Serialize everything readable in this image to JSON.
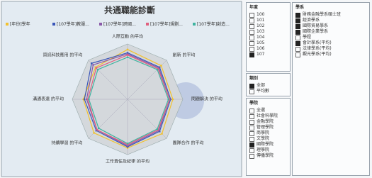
{
  "chart_data": {
    "type": "radar",
    "title": "共通職能診斷",
    "axes": [
      "人際互動 的平均",
      "創新 的平均",
      "問題解決 的平均",
      "團隊合作 的平均",
      "工作責任及紀律 的平均",
      "持續學習 的平均",
      "溝通表達 的平均",
      "資訊科技應用 的平均"
    ],
    "rlim": [
      0,
      5
    ],
    "series": [
      {
        "name": "[年份]學年",
        "color": "#f2c12e",
        "values": [
          4.5,
          4.3,
          4.1,
          4.4,
          4.4,
          4.3,
          4.0,
          4.1
        ]
      },
      {
        "name": "[107學年]教服...",
        "color": "#3a56b8",
        "values": [
          4.2,
          4.1,
          3.9,
          4.1,
          4.3,
          4.0,
          3.9,
          4.6
        ]
      },
      {
        "name": "[107學年]跨國...",
        "color": "#8a5aa8",
        "values": [
          4.1,
          4.0,
          3.8,
          4.0,
          4.2,
          3.9,
          3.7,
          4.4
        ]
      },
      {
        "name": "[107學年]規劃...",
        "color": "#e0607e",
        "values": [
          4.0,
          3.9,
          3.8,
          3.9,
          4.1,
          3.9,
          3.6,
          4.0
        ]
      },
      {
        "name": "[107學年]創造...",
        "color": "#3fb3a0",
        "values": [
          3.8,
          3.8,
          3.7,
          3.8,
          4.0,
          3.7,
          3.5,
          3.8
        ]
      }
    ]
  },
  "filters": [
    {
      "title": "年度",
      "items": [
        {
          "label": "100"
        },
        {
          "label": "101"
        },
        {
          "label": "102"
        },
        {
          "label": "103"
        },
        {
          "label": "104"
        },
        {
          "label": "105"
        },
        {
          "label": "106"
        },
        {
          "label": "107",
          "checked": true
        }
      ]
    },
    {
      "title": "類別",
      "items": [
        {
          "label": "全部",
          "checked": true
        },
        {
          "label": "平均數"
        }
      ]
    },
    {
      "title": "學院",
      "items": [
        {
          "label": "全選"
        },
        {
          "label": "社會科學院"
        },
        {
          "label": "金融學院"
        },
        {
          "label": "管理學院"
        },
        {
          "label": "商學院"
        },
        {
          "label": "文學院"
        },
        {
          "label": "國際學院",
          "checked": true
        },
        {
          "label": "理學院"
        },
        {
          "label": "傳播學院"
        }
      ]
    },
    {
      "title": "學系",
      "items": [
        {
          "label": "財務金融學系碩士班",
          "checked": true
        },
        {
          "label": "經濟學系",
          "checked": true
        },
        {
          "label": "國際貿易學系",
          "checked": true
        },
        {
          "label": "國際企業學系",
          "checked": true
        },
        {
          "label": "學程"
        },
        {
          "label": "會計學系(平均)",
          "checked": true
        },
        {
          "label": "法律學系(平均)"
        },
        {
          "label": "觀光學系(平均)"
        }
      ]
    }
  ]
}
